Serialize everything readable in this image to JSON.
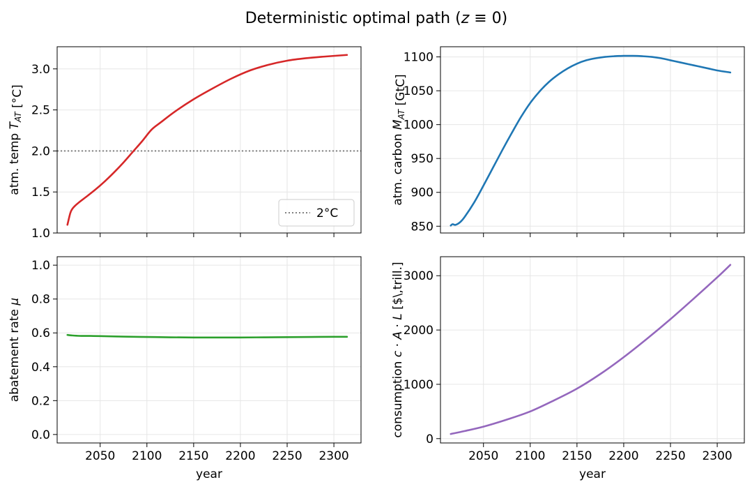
{
  "suptitle": "Deterministic optimal path (z ≡ 0)",
  "colors": {
    "temp": "#d62728",
    "carbon": "#1f77b4",
    "abatement": "#2ca02c",
    "consumption": "#9467bd",
    "ref": "#808080"
  },
  "chart_data": [
    {
      "id": "temp",
      "type": "line",
      "title": "",
      "xlabel": "",
      "ylabel": "atm. temp T_AT [°C]",
      "xlim": [
        2004,
        2329
      ],
      "ylim": [
        1.0,
        3.27
      ],
      "xticks": [
        2050,
        2100,
        2150,
        2200,
        2250,
        2300
      ],
      "xticklabels_visible": false,
      "yticks": [
        1.0,
        1.5,
        2.0,
        2.5,
        3.0
      ],
      "yticklabels": [
        "1.0",
        "1.5",
        "2.0",
        "2.5",
        "3.0"
      ],
      "grid": true,
      "hline": {
        "y": 2.0,
        "style": "dotted",
        "label": "2°C"
      },
      "legend": {
        "placement": "lower-right",
        "entries": [
          "2°C"
        ]
      },
      "x": [
        2015,
        2018,
        2020,
        2023,
        2027,
        2035,
        2045,
        2055,
        2065,
        2075,
        2085,
        2095,
        2105,
        2115,
        2130,
        2150,
        2170,
        2190,
        2210,
        2230,
        2250,
        2270,
        2290,
        2314
      ],
      "series": [
        {
          "color": "#d62728",
          "values": [
            1.1,
            1.24,
            1.29,
            1.33,
            1.37,
            1.44,
            1.53,
            1.63,
            1.74,
            1.86,
            1.99,
            2.12,
            2.26,
            2.35,
            2.48,
            2.63,
            2.76,
            2.88,
            2.98,
            3.05,
            3.1,
            3.13,
            3.15,
            3.17
          ]
        }
      ]
    },
    {
      "id": "carbon",
      "type": "line",
      "title": "",
      "xlabel": "",
      "ylabel": "atm. carbon M_AT [GtC]",
      "xlim": [
        2004,
        2329
      ],
      "ylim": [
        840,
        1115
      ],
      "xticks": [
        2050,
        2100,
        2150,
        2200,
        2250,
        2300
      ],
      "xticklabels_visible": false,
      "yticks": [
        850,
        900,
        950,
        1000,
        1050,
        1100
      ],
      "yticklabels": [
        "850",
        "900",
        "950",
        "1000",
        "1050",
        "1100"
      ],
      "grid": true,
      "x": [
        2015,
        2017,
        2020,
        2025,
        2030,
        2040,
        2050,
        2060,
        2070,
        2080,
        2090,
        2100,
        2110,
        2120,
        2130,
        2140,
        2150,
        2160,
        2170,
        2180,
        2190,
        2200,
        2210,
        2220,
        2230,
        2240,
        2250,
        2260,
        2270,
        2280,
        2290,
        2300,
        2314
      ],
      "series": [
        {
          "color": "#1f77b4",
          "values": [
            851,
            853,
            852,
            856,
            864,
            885,
            910,
            936,
            962,
            987,
            1011,
            1032,
            1049,
            1063,
            1074,
            1083,
            1090,
            1095,
            1098,
            1100,
            1101,
            1101.5,
            1101.5,
            1101,
            1100,
            1098,
            1095,
            1092,
            1089,
            1086,
            1083,
            1080,
            1077
          ]
        }
      ]
    },
    {
      "id": "abatement",
      "type": "line",
      "title": "",
      "xlabel": "year",
      "ylabel": "abatement rate μ",
      "xlim": [
        2004,
        2329
      ],
      "ylim": [
        -0.05,
        1.05
      ],
      "xticks": [
        2050,
        2100,
        2150,
        2200,
        2250,
        2300
      ],
      "xticklabels": [
        "2050",
        "2100",
        "2150",
        "2200",
        "2250",
        "2300"
      ],
      "yticks": [
        0.0,
        0.2,
        0.4,
        0.6,
        0.8,
        1.0
      ],
      "yticklabels": [
        "0.0",
        "0.2",
        "0.4",
        "0.6",
        "0.8",
        "1.0"
      ],
      "grid": true,
      "x": [
        2015,
        2020,
        2025,
        2030,
        2040,
        2050,
        2075,
        2100,
        2125,
        2150,
        2175,
        2200,
        2225,
        2250,
        2275,
        2300,
        2314
      ],
      "series": [
        {
          "color": "#2ca02c",
          "values": [
            0.588,
            0.585,
            0.583,
            0.582,
            0.582,
            0.581,
            0.578,
            0.576,
            0.574,
            0.573,
            0.573,
            0.573,
            0.574,
            0.575,
            0.576,
            0.577,
            0.577
          ]
        }
      ]
    },
    {
      "id": "consumption",
      "type": "line",
      "title": "",
      "xlabel": "year",
      "ylabel": "consumption c · A · L [$\\,trill.]",
      "xlim": [
        2004,
        2329
      ],
      "ylim": [
        -80,
        3350
      ],
      "xticks": [
        2050,
        2100,
        2150,
        2200,
        2250,
        2300
      ],
      "xticklabels": [
        "2050",
        "2100",
        "2150",
        "2200",
        "2250",
        "2300"
      ],
      "yticks": [
        0,
        1000,
        2000,
        3000
      ],
      "yticklabels": [
        "0",
        "1000",
        "2000",
        "3000"
      ],
      "grid": true,
      "x": [
        2015,
        2030,
        2050,
        2075,
        2100,
        2125,
        2150,
        2175,
        2200,
        2225,
        2250,
        2275,
        2300,
        2314
      ],
      "series": [
        {
          "color": "#9467bd",
          "values": [
            85,
            140,
            220,
            350,
            500,
            700,
            920,
            1190,
            1500,
            1840,
            2200,
            2580,
            2970,
            3200
          ]
        }
      ]
    }
  ]
}
